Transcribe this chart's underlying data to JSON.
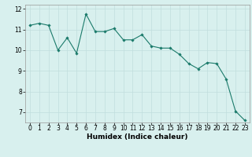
{
  "x": [
    0,
    1,
    2,
    3,
    4,
    5,
    6,
    7,
    8,
    9,
    10,
    11,
    12,
    13,
    14,
    15,
    16,
    17,
    18,
    19,
    20,
    21,
    22,
    23
  ],
  "y": [
    11.2,
    11.3,
    11.2,
    10.0,
    10.6,
    9.85,
    11.75,
    10.9,
    10.9,
    11.05,
    10.5,
    10.5,
    10.75,
    10.2,
    10.1,
    10.1,
    9.8,
    9.35,
    9.1,
    9.4,
    9.35,
    8.6,
    7.05,
    6.6
  ],
  "line_color": "#1a7a6a",
  "marker_color": "#1a7a6a",
  "bg_color": "#d8f0ee",
  "grid_color": "#c0dedd",
  "xlabel": "Humidex (Indice chaleur)",
  "ylim": [
    6.5,
    12.2
  ],
  "xlim": [
    -0.5,
    23.5
  ],
  "yticks": [
    7,
    8,
    9,
    10,
    11,
    12
  ],
  "xtick_labels": [
    "0",
    "1",
    "2",
    "3",
    "4",
    "5",
    "6",
    "7",
    "8",
    "9",
    "10",
    "11",
    "12",
    "13",
    "14",
    "15",
    "16",
    "17",
    "18",
    "19",
    "20",
    "21",
    "22",
    "23"
  ],
  "label_fontsize": 6.5,
  "tick_fontsize": 5.5
}
